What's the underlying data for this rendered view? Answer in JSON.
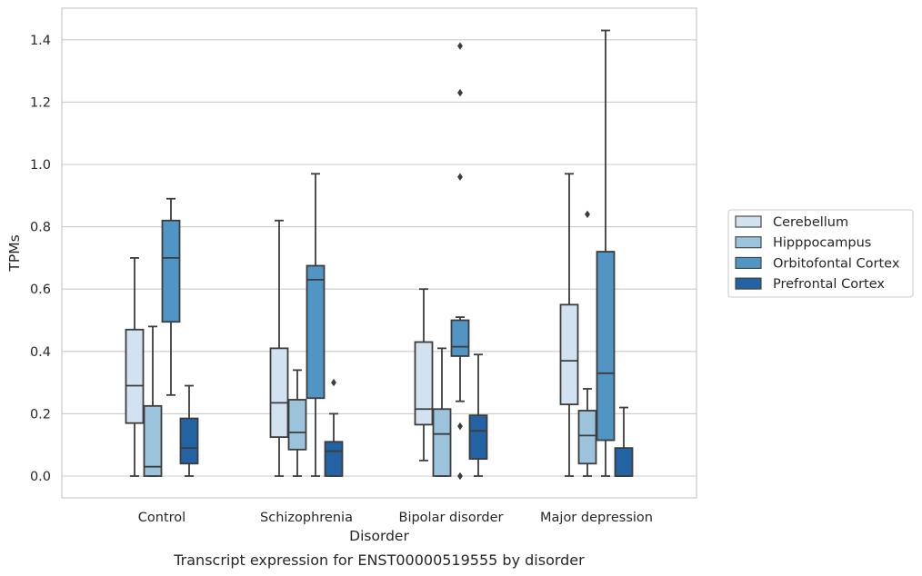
{
  "chart_data": {
    "type": "box",
    "caption": "Transcript expression for ENST00000519555 by disorder",
    "xlabel": "Disorder",
    "ylabel": "TPMs",
    "ylim": [
      -0.07,
      1.5
    ],
    "yticks": [
      0.0,
      0.2,
      0.4,
      0.6,
      0.8,
      1.0,
      1.2,
      1.4
    ],
    "ytick_labels": [
      "0.0",
      "0.2",
      "0.4",
      "0.6",
      "0.8",
      "1.0",
      "1.2",
      "1.4"
    ],
    "grid": true,
    "legend_position": "right",
    "categories": [
      "Control",
      "Schizophrenia",
      "Bipolar disorder",
      "Major depression"
    ],
    "series": [
      {
        "name": "Cerebellum",
        "color": "#d2e2f0",
        "boxes": [
          {
            "whislo": 0.0,
            "q1": 0.17,
            "med": 0.29,
            "q3": 0.47,
            "whishi": 0.7,
            "fliers": []
          },
          {
            "whislo": 0.0,
            "q1": 0.125,
            "med": 0.235,
            "q3": 0.41,
            "whishi": 0.82,
            "fliers": []
          },
          {
            "whislo": 0.05,
            "q1": 0.165,
            "med": 0.215,
            "q3": 0.43,
            "whishi": 0.6,
            "fliers": []
          },
          {
            "whislo": 0.0,
            "q1": 0.23,
            "med": 0.37,
            "q3": 0.55,
            "whishi": 0.97,
            "fliers": []
          }
        ]
      },
      {
        "name": "Hipppocampus",
        "color": "#9cc3dc",
        "boxes": [
          {
            "whislo": 0.0,
            "q1": 0.0,
            "med": 0.03,
            "q3": 0.225,
            "whishi": 0.48,
            "fliers": []
          },
          {
            "whislo": 0.0,
            "q1": 0.085,
            "med": 0.14,
            "q3": 0.245,
            "whishi": 0.34,
            "fliers": []
          },
          {
            "whislo": 0.0,
            "q1": 0.0,
            "med": 0.135,
            "q3": 0.215,
            "whishi": 0.41,
            "fliers": []
          },
          {
            "whislo": 0.0,
            "q1": 0.04,
            "med": 0.13,
            "q3": 0.21,
            "whishi": 0.28,
            "fliers": [
              0.84
            ]
          }
        ]
      },
      {
        "name": "Orbitofontal Cortex",
        "color": "#5195c4",
        "boxes": [
          {
            "whislo": 0.26,
            "q1": 0.495,
            "med": 0.7,
            "q3": 0.82,
            "whishi": 0.89,
            "fliers": []
          },
          {
            "whislo": 0.0,
            "q1": 0.25,
            "med": 0.63,
            "q3": 0.675,
            "whishi": 0.97,
            "fliers": []
          },
          {
            "whislo": 0.24,
            "q1": 0.385,
            "med": 0.415,
            "q3": 0.5,
            "whishi": 0.51,
            "fliers": [
              0.16,
              0.0,
              0.96,
              1.23,
              1.38
            ]
          },
          {
            "whislo": 0.0,
            "q1": 0.115,
            "med": 0.33,
            "q3": 0.72,
            "whishi": 1.43,
            "fliers": []
          }
        ]
      },
      {
        "name": "Prefrontal Cortex",
        "color": "#2463a3",
        "boxes": [
          {
            "whislo": 0.0,
            "q1": 0.04,
            "med": 0.09,
            "q3": 0.185,
            "whishi": 0.29,
            "fliers": []
          },
          {
            "whislo": 0.0,
            "q1": 0.0,
            "med": 0.08,
            "q3": 0.11,
            "whishi": 0.2,
            "fliers": [
              0.3
            ]
          },
          {
            "whislo": 0.0,
            "q1": 0.055,
            "med": 0.145,
            "q3": 0.195,
            "whishi": 0.39,
            "fliers": []
          },
          {
            "whislo": 0.0,
            "q1": 0.0,
            "med": 0.0,
            "q3": 0.09,
            "whishi": 0.22,
            "fliers": []
          }
        ]
      }
    ]
  }
}
